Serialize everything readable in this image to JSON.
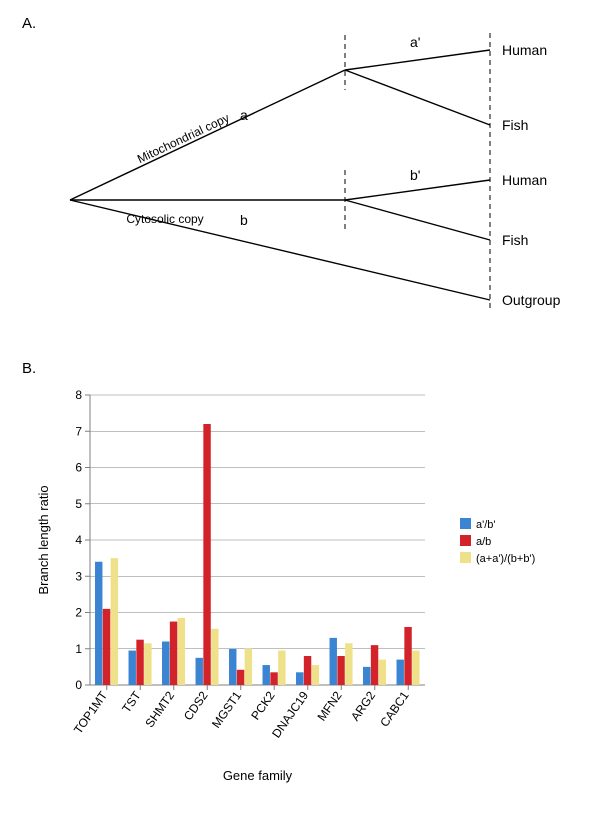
{
  "panelA": {
    "label": "A.",
    "tips": [
      "Human",
      "Fish",
      "Human",
      "Fish",
      "Outgroup"
    ],
    "branchLabels": {
      "a": "a",
      "ap": "a'",
      "b": "b",
      "bp": "b'"
    },
    "copyLabels": {
      "mito": "Mitochondrial copy",
      "cyto": "Cytosolic copy"
    },
    "lineColor": "#000000",
    "lineWidth": 1.4
  },
  "panelB": {
    "label": "B.",
    "chart": {
      "type": "bar-grouped",
      "categories": [
        "TOP1MT",
        "TST",
        "SHMT2",
        "CDS2",
        "MGST1",
        "PCK2",
        "DNAJC19",
        "MFN2",
        "ARG2",
        "CABC1"
      ],
      "series": [
        {
          "name": "a'/b'",
          "color": "#3a84d2",
          "values": [
            3.4,
            0.95,
            1.2,
            0.75,
            1.0,
            0.55,
            0.35,
            1.3,
            0.5,
            0.7
          ]
        },
        {
          "name": "a/b",
          "color": "#d2232a",
          "values": [
            2.1,
            1.25,
            1.75,
            7.2,
            0.42,
            0.35,
            0.8,
            0.8,
            1.1,
            1.6
          ]
        },
        {
          "name": "(a+a')/(b+b')",
          "color": "#efe08a",
          "values": [
            3.5,
            1.15,
            1.85,
            1.55,
            1.0,
            0.95,
            0.55,
            1.15,
            0.7,
            0.95
          ]
        }
      ],
      "ylim": [
        0,
        8
      ],
      "ytick_step": 1,
      "xlabel": "Gene family",
      "ylabel": "Branch length ratio",
      "background": "#ffffff",
      "grid_color": "#7f7f7f",
      "grid_width": 0.5,
      "bar_gap": 0.15,
      "axis_color": "#7f7f7f",
      "tick_len": 5,
      "label_fontsize": 13
    }
  }
}
